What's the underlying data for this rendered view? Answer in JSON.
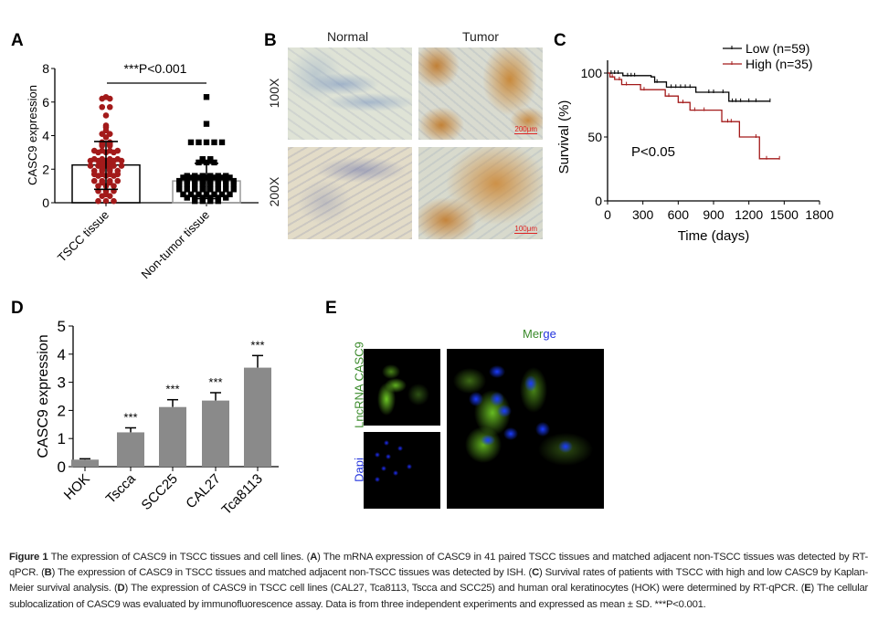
{
  "panel_labels": [
    "A",
    "B",
    "C",
    "D",
    "E"
  ],
  "chart_data": [
    {
      "panel": "A",
      "type": "scatter",
      "ylabel": "CASC9 expression",
      "ylim": [
        0,
        8
      ],
      "yticks": [
        "0",
        "2",
        "4",
        "6",
        "8"
      ],
      "categories": [
        "TSCC tissue",
        "Non-tumor tissue"
      ],
      "bar_means": [
        2.25,
        1.3
      ],
      "sd_ranges": [
        [
          0.8,
          3.65
        ],
        [
          0.25,
          2.35
        ]
      ],
      "annotation": "***P<0.001",
      "colors": [
        "#a31a1a",
        "#000000"
      ],
      "points": [
        [
          6.3,
          6.2,
          6.2,
          5.7,
          5.7,
          5.2,
          4.6,
          4.5,
          4.3,
          4.1,
          4.1,
          3.9,
          3.6,
          3.6,
          3.5,
          3.5,
          3.4,
          3.4,
          3.1,
          3.1,
          3.1,
          3.1,
          3.0,
          3.0,
          3.0,
          2.6,
          2.6,
          2.6,
          2.6,
          2.5,
          2.5,
          2.5,
          2.5,
          2.5,
          2.3,
          2.3,
          2.2,
          2.2,
          2.2,
          2.2,
          2.2,
          2.0,
          2.0,
          1.9,
          1.9,
          1.9,
          1.9,
          1.7,
          1.7,
          1.7,
          1.7,
          1.6,
          1.6,
          1.6,
          1.3,
          1.3,
          1.3,
          1.3,
          1.2,
          1.2,
          1.0,
          1.0,
          1.0,
          0.7,
          0.7,
          0.7,
          0.5,
          0.4,
          0.4,
          0.1,
          0.1,
          0.1
        ],
        [
          6.3,
          4.7,
          3.6,
          3.6,
          3.6,
          3.6,
          3.6,
          2.6,
          2.6,
          2.5,
          2.5,
          2.4,
          2.4,
          2.4,
          1.6,
          1.6,
          1.6,
          1.6,
          1.6,
          1.6,
          1.5,
          1.5,
          1.5,
          1.5,
          1.5,
          1.5,
          1.5,
          1.3,
          1.3,
          1.3,
          1.3,
          1.3,
          1.3,
          1.3,
          1.3,
          1.1,
          1.1,
          1.1,
          1.1,
          1.1,
          1.1,
          1.1,
          1.1,
          0.8,
          0.8,
          0.8,
          0.8,
          0.8,
          0.8,
          0.8,
          0.8,
          0.5,
          0.5,
          0.5,
          0.5,
          0.5,
          0.5,
          0.5,
          0.3,
          0.3,
          0.3,
          0.3,
          0.3,
          0.3,
          0.1,
          0.1,
          0.1,
          0.1
        ]
      ]
    },
    {
      "panel": "C",
      "type": "line",
      "ylabel": "Survival (%)",
      "xlabel": "Time (days)",
      "xlim": [
        0,
        1800
      ],
      "ylim": [
        0,
        100
      ],
      "xticks": [
        "0",
        "300",
        "600",
        "900",
        "1200",
        "1500",
        "1800"
      ],
      "yticks": [
        "0",
        "50",
        "100"
      ],
      "annotation": "P<0.05",
      "legend_position": "top-right",
      "series": [
        {
          "name": "Low (n=59)",
          "color": "#000000",
          "steps": [
            [
              0,
              100
            ],
            [
              130,
              98
            ],
            [
              370,
              97
            ],
            [
              400,
              93
            ],
            [
              500,
              89
            ],
            [
              750,
              85
            ],
            [
              1030,
              78
            ],
            [
              1380,
              78
            ]
          ],
          "censored": [
            30,
            60,
            90,
            170,
            200,
            230,
            400,
            420,
            540,
            580,
            620,
            660,
            700,
            860,
            900,
            980,
            1060,
            1090,
            1130,
            1200,
            1260,
            1380
          ]
        },
        {
          "name": "High (n=35)",
          "color": "#a31a1a",
          "steps": [
            [
              0,
              100
            ],
            [
              20,
              97
            ],
            [
              60,
              95
            ],
            [
              120,
              91
            ],
            [
              280,
              87
            ],
            [
              490,
              82
            ],
            [
              600,
              77
            ],
            [
              700,
              71
            ],
            [
              970,
              62
            ],
            [
              1120,
              50
            ],
            [
              1290,
              33
            ],
            [
              1460,
              33
            ]
          ],
          "censored": [
            40,
            100,
            160,
            310,
            520,
            640,
            740,
            820,
            1020,
            1050,
            1260,
            1350,
            1460
          ]
        }
      ]
    },
    {
      "panel": "D",
      "type": "bar",
      "ylabel": "CASC9 expression",
      "ylim": [
        0,
        5
      ],
      "yticks": [
        "0",
        "1",
        "2",
        "3",
        "4",
        "5"
      ],
      "categories": [
        "HOK",
        "Tscca",
        "SCC25",
        "CAL27",
        "Tca8113"
      ],
      "values": [
        0.25,
        1.22,
        2.12,
        2.35,
        3.52
      ],
      "error_upper": [
        0.28,
        1.38,
        2.38,
        2.63,
        3.95
      ],
      "significance": [
        "",
        "***",
        "***",
        "***",
        "***"
      ],
      "bar_color": "#8a8a8a"
    }
  ],
  "panel_b": {
    "columns": [
      "Normal",
      "Tumor"
    ],
    "rows": [
      "100X",
      "200X"
    ],
    "scale_bars": [
      "200μm",
      "100μm"
    ]
  },
  "panel_e": {
    "merge_label_green": "Mer",
    "merge_label_blue": "ge",
    "row_labels": [
      "LncRNA CASC9",
      "Dapi"
    ],
    "colors": {
      "green": "#3a8a2a",
      "blue": "#2233dd"
    }
  },
  "caption": {
    "figure": "Figure 1",
    "intro": " The expression of CASC9 in TSCC tissues and cell lines. (",
    "a": "A",
    "a_text": ") The mRNA expression of CASC9 in 41 paired TSCC tissues and matched adjacent non-TSCC tissues was detected by RT-qPCR. (",
    "b": "B",
    "b_text": ") The expression of CASC9 in TSCC tissues and matched adjacent non-TSCC tissues was detected by ISH. (",
    "c": "C",
    "c_text": ") Survival rates of patients with TSCC with high and low CASC9 by Kaplan-Meier survival analysis. (",
    "d": "D",
    "d_text": ") The expression of CASC9 in TSCC cell lines (CAL27, Tca8113, Tscca and SCC25) and human oral keratinocytes (HOK) were determined by RT-qPCR. (",
    "e": "E",
    "e_text": ") The cellular sublocalization of CASC9 was evaluated by immunofluorescence assay. Data is from three independent experiments and expressed as mean ± SD. ***P<0.001."
  }
}
